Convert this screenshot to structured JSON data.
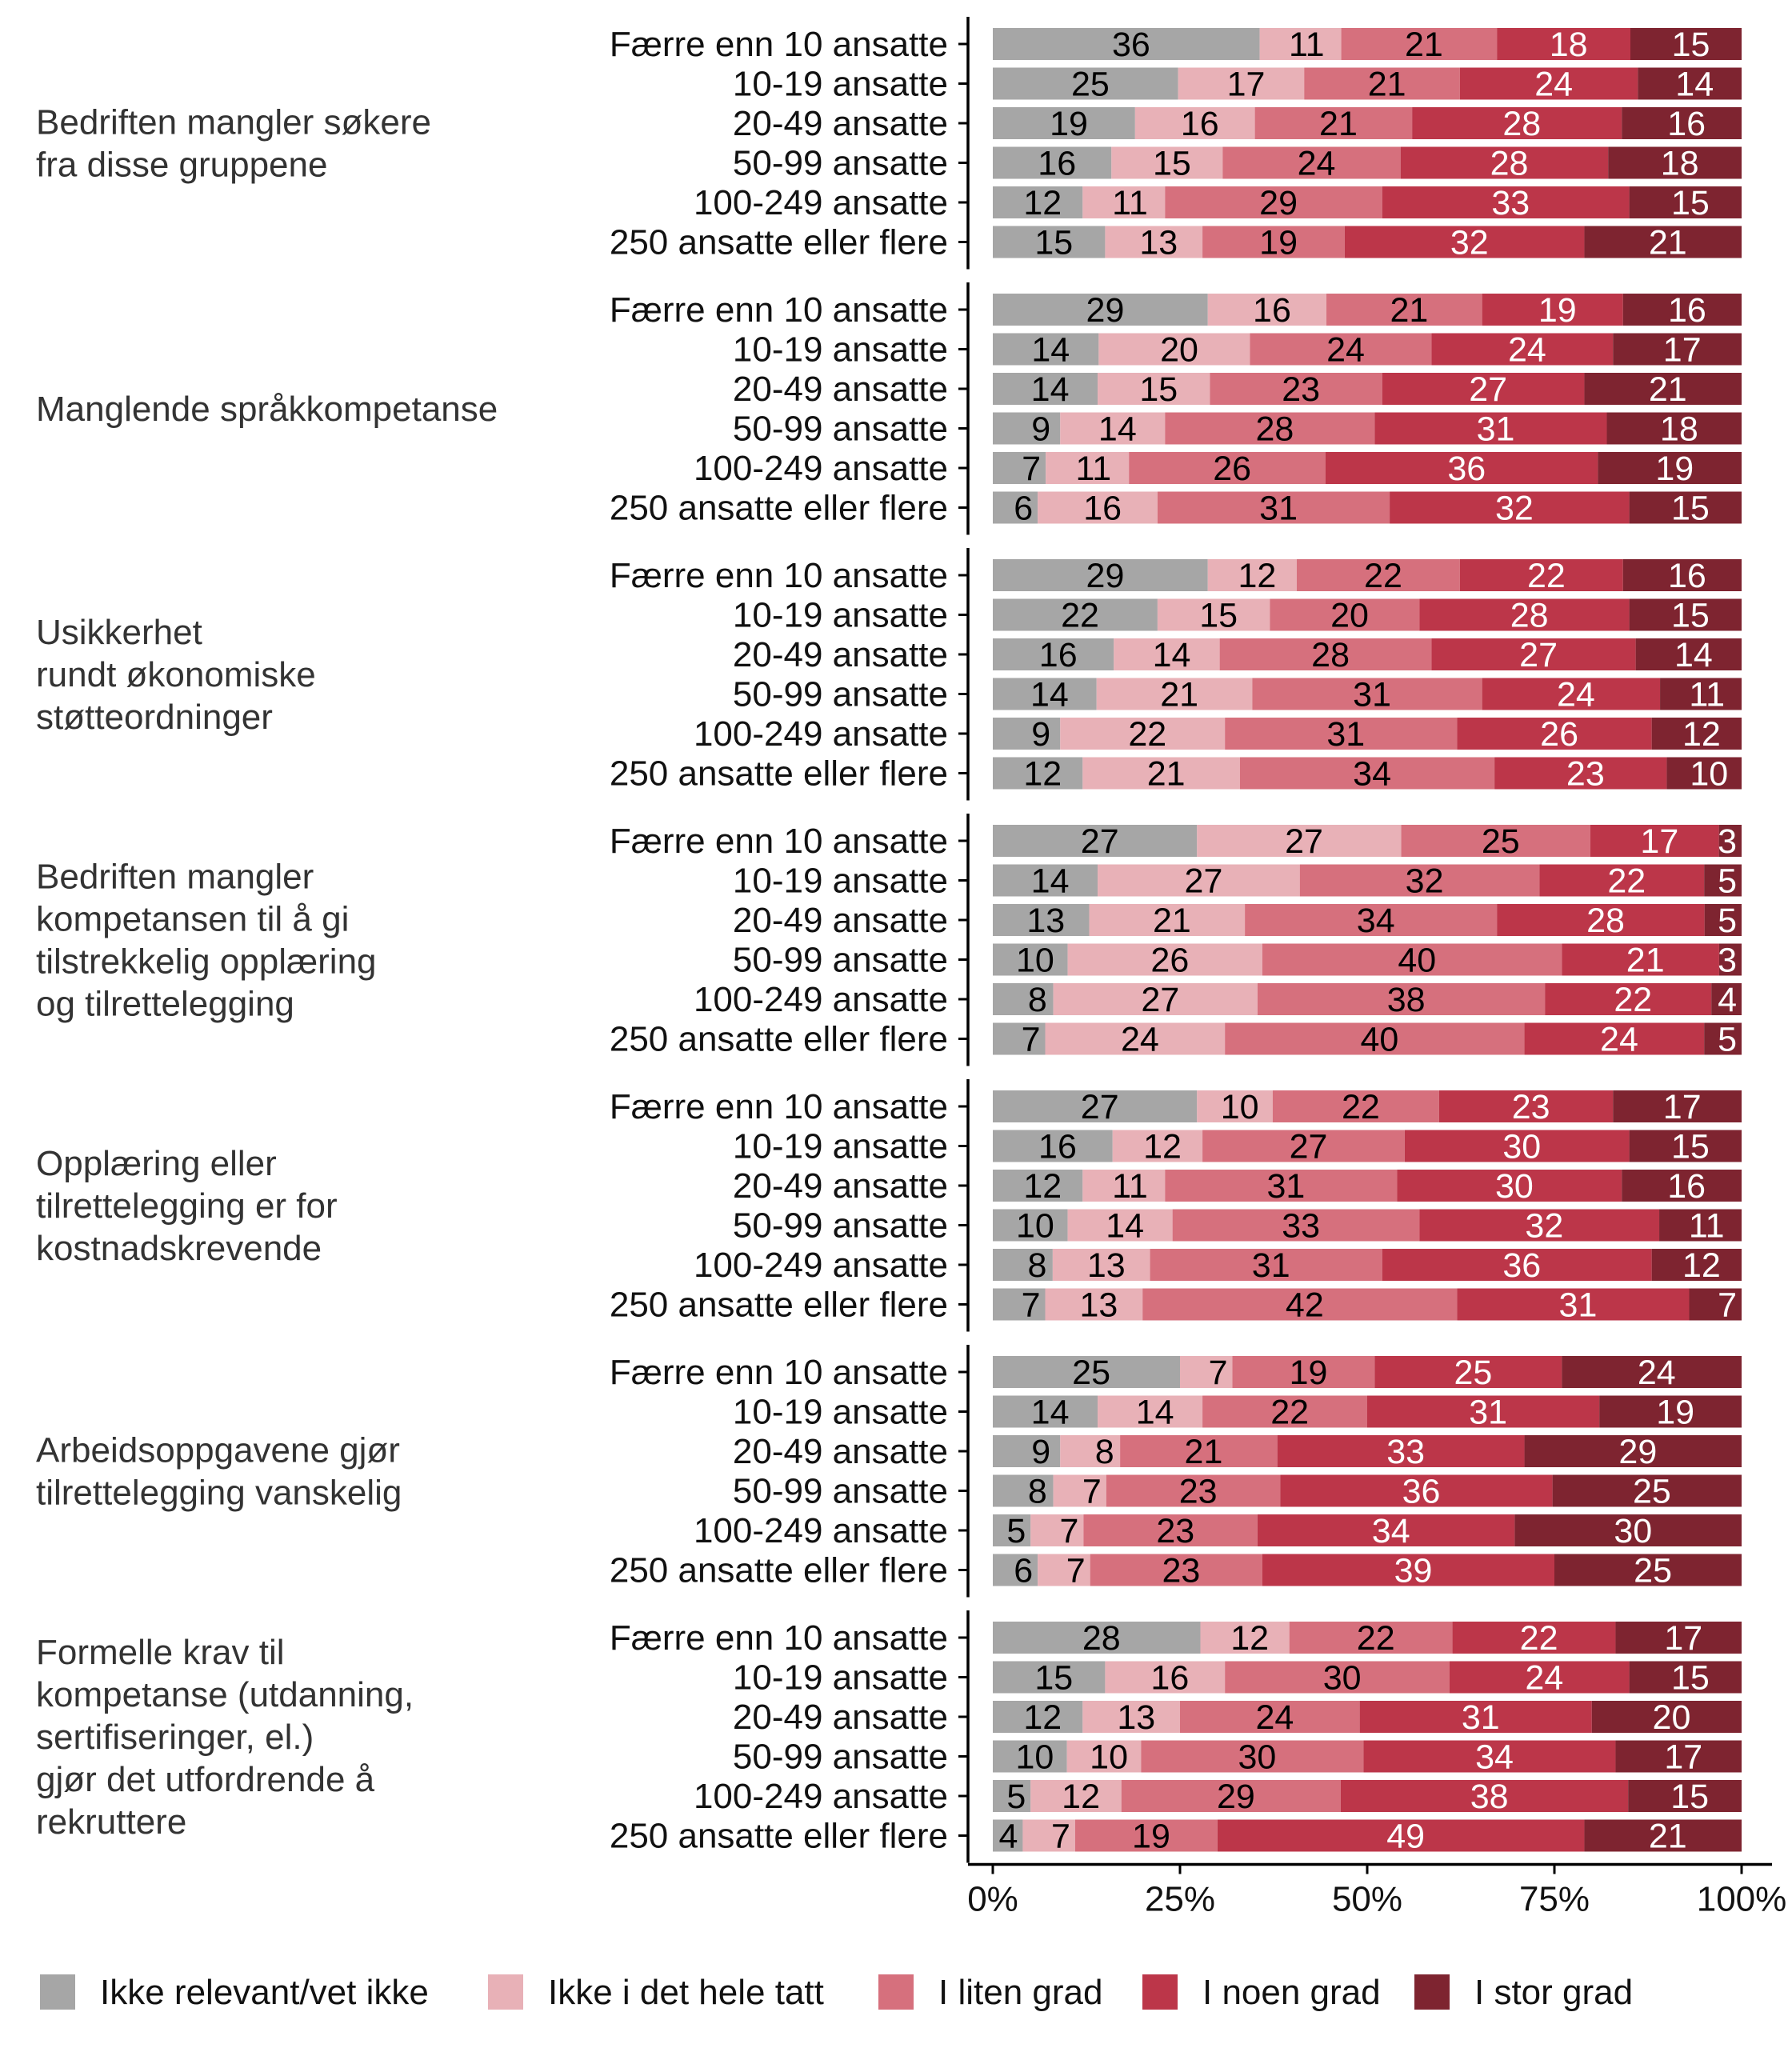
{
  "chart_data": {
    "type": "bar",
    "orientation": "horizontal",
    "stacked": "percent",
    "title": "",
    "xlabel": "",
    "ylabel": "",
    "xlim": [
      0,
      100
    ],
    "x_ticks": [
      "0%",
      "25%",
      "50%",
      "75%",
      "100%"
    ],
    "x_tick_values": [
      0,
      25,
      50,
      75,
      100
    ],
    "grid": false,
    "legend_position": "bottom",
    "categories": [
      "Færre enn 10 ansatte",
      "10-19 ansatte",
      "20-49 ansatte",
      "50-99 ansatte",
      "100-249 ansatte",
      "250 ansatte eller flere"
    ],
    "series": [
      {
        "name": "Ikke relevant/vet ikke",
        "color": "#A6A6A6",
        "label_color": "#000000"
      },
      {
        "name": "Ikke i det hele tatt",
        "color": "#E8B1B7",
        "label_color": "#000000"
      },
      {
        "name": "I liten grad",
        "color": "#D6707D",
        "label_color": "#000000"
      },
      {
        "name": "I noen grad",
        "color": "#BC3649",
        "label_color": "#FFFFFF"
      },
      {
        "name": "I stor grad",
        "color": "#7E2430",
        "label_color": "#FFFFFF"
      }
    ],
    "facets": [
      {
        "label": [
          "Bedriften mangler søkere",
          "fra disse gruppene"
        ],
        "rows": [
          [
            36,
            11,
            21,
            18,
            15
          ],
          [
            25,
            17,
            21,
            24,
            14
          ],
          [
            19,
            16,
            21,
            28,
            16
          ],
          [
            16,
            15,
            24,
            28,
            18
          ],
          [
            12,
            11,
            29,
            33,
            15
          ],
          [
            15,
            13,
            19,
            32,
            21
          ]
        ]
      },
      {
        "label": [
          "Manglende språkkompetanse"
        ],
        "rows": [
          [
            29,
            16,
            21,
            19,
            16
          ],
          [
            14,
            20,
            24,
            24,
            17
          ],
          [
            14,
            15,
            23,
            27,
            21
          ],
          [
            9,
            14,
            28,
            31,
            18
          ],
          [
            7,
            11,
            26,
            36,
            19
          ],
          [
            6,
            16,
            31,
            32,
            15
          ]
        ]
      },
      {
        "label": [
          "Usikkerhet",
          "rundt økonomiske",
          "støtteordninger"
        ],
        "rows": [
          [
            29,
            12,
            22,
            22,
            16
          ],
          [
            22,
            15,
            20,
            28,
            15
          ],
          [
            16,
            14,
            28,
            27,
            14
          ],
          [
            14,
            21,
            31,
            24,
            11
          ],
          [
            9,
            22,
            31,
            26,
            12
          ],
          [
            12,
            21,
            34,
            23,
            10
          ]
        ]
      },
      {
        "label": [
          "Bedriften mangler",
          "kompetansen til å gi",
          "tilstrekkelig opplæring",
          "og tilrettelegging"
        ],
        "rows": [
          [
            27,
            27,
            25,
            17,
            3
          ],
          [
            14,
            27,
            32,
            22,
            5
          ],
          [
            13,
            21,
            34,
            28,
            5
          ],
          [
            10,
            26,
            40,
            21,
            3
          ],
          [
            8,
            27,
            38,
            22,
            4
          ],
          [
            7,
            24,
            40,
            24,
            5
          ]
        ]
      },
      {
        "label": [
          "Opplæring eller",
          "tilrettelegging er for",
          "kostnadskrevende"
        ],
        "rows": [
          [
            27,
            10,
            22,
            23,
            17
          ],
          [
            16,
            12,
            27,
            30,
            15
          ],
          [
            12,
            11,
            31,
            30,
            16
          ],
          [
            10,
            14,
            33,
            32,
            11
          ],
          [
            8,
            13,
            31,
            36,
            12
          ],
          [
            7,
            13,
            42,
            31,
            7
          ]
        ]
      },
      {
        "label": [
          "Arbeidsoppgavene gjør",
          "tilrettelegging vanskelig"
        ],
        "rows": [
          [
            25,
            7,
            19,
            25,
            24
          ],
          [
            14,
            14,
            22,
            31,
            19
          ],
          [
            9,
            8,
            21,
            33,
            29
          ],
          [
            8,
            7,
            23,
            36,
            25
          ],
          [
            5,
            7,
            23,
            34,
            30
          ],
          [
            6,
            7,
            23,
            39,
            25
          ]
        ]
      },
      {
        "label": [
          "Formelle krav til",
          "kompetanse (utdanning,",
          "sertifiseringer, el.)",
          "gjør det utfordrende å",
          "rekruttere"
        ],
        "rows": [
          [
            28,
            12,
            22,
            22,
            17
          ],
          [
            15,
            16,
            30,
            24,
            15
          ],
          [
            12,
            13,
            24,
            31,
            20
          ],
          [
            10,
            10,
            30,
            34,
            17
          ],
          [
            5,
            12,
            29,
            38,
            15
          ],
          [
            4,
            7,
            19,
            49,
            21
          ]
        ]
      }
    ]
  }
}
